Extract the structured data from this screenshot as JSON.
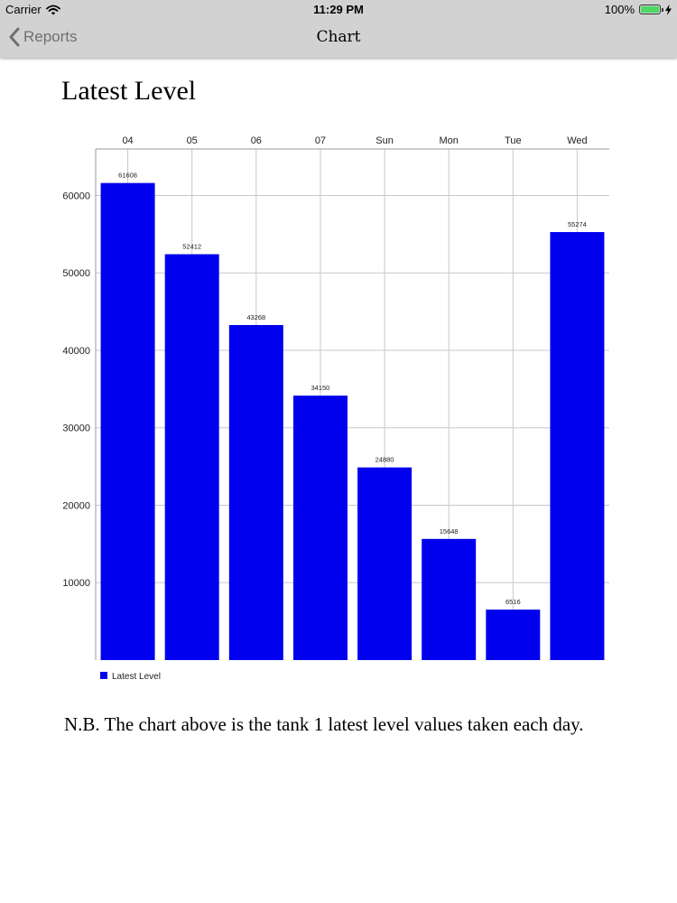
{
  "status_bar": {
    "carrier": "Carrier",
    "time": "11:29 PM",
    "battery": "100%",
    "battery_level": 1.0,
    "icons": [
      "wifi-icon",
      "battery-icon",
      "charging-icon"
    ]
  },
  "nav": {
    "back_label": "Reports",
    "title": "Chart",
    "back_icon": "chevron-left-icon"
  },
  "page": {
    "title": "Latest Level",
    "note": "N.B. The chart above is the tank 1 latest level values taken each day."
  },
  "colors": {
    "bar": "#0000ee",
    "nav_background": "#d3d2d3",
    "grid": "#c8c8c8",
    "axis": "#9a9a9a"
  },
  "chart_data": {
    "type": "bar",
    "categories": [
      "04",
      "05",
      "06",
      "07",
      "Sun",
      "Mon",
      "Tue",
      "Wed"
    ],
    "series": [
      {
        "name": "Latest Level",
        "values": [
          61608,
          52412,
          43268,
          34150,
          24880,
          15648,
          6516,
          55274
        ]
      }
    ],
    "data_labels": [
      "61608",
      "52412",
      "43268",
      "34150",
      "24880",
      "15648",
      "6516",
      "55274"
    ],
    "y_ticks": [
      10000,
      20000,
      30000,
      40000,
      50000,
      60000
    ],
    "ylim": [
      0,
      66000
    ],
    "x_axis_position": "top",
    "grid": true,
    "legend": "bottom-left"
  }
}
